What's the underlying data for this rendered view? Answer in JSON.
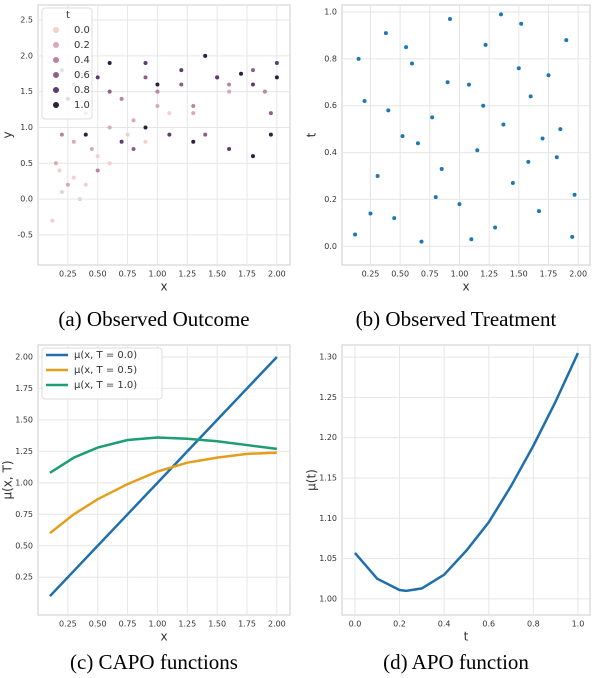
{
  "chart_data": [
    {
      "type": "scatter",
      "caption": "(a) Observed Outcome",
      "xlabel": "x",
      "ylabel": "y",
      "xlim": [
        0.0,
        2.11
      ],
      "ylim": [
        -0.92,
        2.71
      ],
      "xticks": [
        0.25,
        {
          "value": 0.5,
          "label": "0.50"
        },
        0.75,
        {
          "value": 1.0,
          "label": "1.00"
        },
        1.25,
        {
          "value": 1.5,
          "label": "1.50"
        },
        1.75,
        {
          "value": 2.0,
          "label": "2.00"
        }
      ],
      "yticks": [
        -0.5,
        {
          "value": 0,
          "label": "0.0"
        },
        0.5,
        {
          "value": 1,
          "label": "1.0"
        },
        1.5,
        {
          "value": 2,
          "label": "2.0"
        },
        2.5
      ],
      "grid": true,
      "legend_title": "t",
      "legend": "upper left",
      "series": [
        {
          "name": "0.0",
          "color": "#f2d0cc",
          "x": [
            0.12,
            0.2,
            0.3,
            0.4,
            0.5,
            0.6,
            0.75,
            0.9,
            1.1,
            0.18,
            0.35
          ],
          "values": [
            -0.3,
            0.1,
            0.3,
            0.2,
            0.6,
            0.5,
            0.9,
            0.8,
            1.2,
            0.4,
            0.0
          ]
        },
        {
          "name": "0.2",
          "color": "#dba9b3",
          "x": [
            0.15,
            0.3,
            0.45,
            0.6,
            0.8,
            1.0,
            1.3,
            1.6,
            0.25
          ],
          "values": [
            0.5,
            0.8,
            0.7,
            1.0,
            1.1,
            1.3,
            1.2,
            1.5,
            0.2
          ]
        },
        {
          "name": "0.4",
          "color": "#b9849f",
          "x": [
            0.2,
            0.4,
            0.7,
            1.0,
            1.3,
            1.6,
            1.9,
            0.5
          ],
          "values": [
            0.9,
            1.2,
            1.4,
            1.5,
            1.3,
            1.6,
            1.5,
            0.4
          ]
        },
        {
          "name": "0.6",
          "color": "#8f5e8a",
          "x": [
            0.3,
            0.6,
            0.9,
            1.2,
            1.5,
            1.8,
            0.8,
            1.4,
            1.95
          ],
          "values": [
            1.6,
            1.5,
            1.7,
            1.6,
            1.7,
            1.8,
            0.7,
            0.9,
            1.2
          ]
        },
        {
          "name": "0.8",
          "color": "#5e3c6e",
          "x": [
            0.2,
            0.5,
            0.9,
            1.2,
            1.5,
            1.8,
            2.0,
            0.7,
            1.1,
            1.6
          ],
          "values": [
            1.8,
            1.7,
            1.9,
            1.8,
            1.7,
            1.6,
            1.9,
            0.8,
            0.9,
            0.7
          ]
        },
        {
          "name": "1.0",
          "color": "#2d1e3e",
          "x": [
            0.25,
            0.6,
            1.0,
            1.4,
            1.7,
            2.0,
            0.4,
            0.9,
            1.3,
            1.8,
            1.95
          ],
          "values": [
            1.4,
            1.9,
            1.6,
            2.0,
            1.75,
            1.7,
            0.9,
            1.0,
            0.8,
            0.6,
            0.9
          ]
        }
      ]
    },
    {
      "type": "scatter",
      "caption": "(b) Observed Treatment",
      "xlabel": "x",
      "ylabel": "t",
      "xlim": [
        0.01,
        2.1
      ],
      "ylim": [
        -0.08,
        1.03
      ],
      "xticks": [
        0.25,
        {
          "value": 0.5,
          "label": "0.50"
        },
        0.75,
        {
          "value": 1.0,
          "label": "1.00"
        },
        1.25,
        {
          "value": 1.5,
          "label": "1.50"
        },
        1.75,
        {
          "value": 2.0,
          "label": "2.00"
        }
      ],
      "yticks": [
        {
          "value": 0,
          "label": "0.0"
        },
        0.2,
        0.4,
        0.6,
        0.8,
        {
          "value": 1,
          "label": "1.0"
        }
      ],
      "grid": true,
      "series": [
        {
          "color": "#1f77b4",
          "x": [
            0.12,
            0.2,
            0.31,
            0.38,
            0.45,
            0.52,
            0.6,
            0.68,
            0.77,
            0.85,
            0.92,
            1.0,
            1.08,
            1.15,
            1.22,
            1.3,
            1.37,
            1.45,
            1.52,
            1.6,
            1.67,
            1.75,
            1.82,
            1.9,
            1.97,
            0.15,
            0.4,
            0.65,
            0.9,
            1.1,
            1.35,
            1.58,
            1.85,
            0.25,
            0.55,
            0.8,
            1.2,
            1.5,
            1.7,
            1.95
          ],
          "values": [
            0.05,
            0.62,
            0.3,
            0.91,
            0.12,
            0.47,
            0.78,
            0.02,
            0.55,
            0.33,
            0.97,
            0.18,
            0.69,
            0.41,
            0.86,
            0.08,
            0.52,
            0.27,
            0.95,
            0.64,
            0.15,
            0.73,
            0.38,
            0.88,
            0.22,
            0.8,
            0.58,
            0.44,
            0.7,
            0.03,
            0.99,
            0.36,
            0.5,
            0.14,
            0.85,
            0.21,
            0.6,
            0.76,
            0.46,
            0.04
          ]
        }
      ]
    },
    {
      "type": "line",
      "caption": "(c) CAPO functions",
      "xlabel": "x",
      "ylabel": "μ(x, T)",
      "xlim": [
        0.0,
        2.11
      ],
      "ylim": [
        -0.05,
        2.095
      ],
      "xticks": [
        0.25,
        {
          "value": 0.5,
          "label": "0.50"
        },
        0.75,
        {
          "value": 1.0,
          "label": "1.00"
        },
        1.25,
        {
          "value": 1.5,
          "label": "1.50"
        },
        1.75,
        {
          "value": 2.0,
          "label": "2.00"
        }
      ],
      "yticks": [
        0.25,
        {
          "value": 0.5,
          "label": "0.50"
        },
        0.75,
        {
          "value": 1.0,
          "label": "1.00"
        },
        1.25,
        {
          "value": 1.5,
          "label": "1.50"
        },
        1.75,
        {
          "value": 2.0,
          "label": "2.00"
        }
      ],
      "grid": true,
      "legend": "upper left",
      "x": [
        0.1,
        0.3,
        0.5,
        0.75,
        1.0,
        1.25,
        1.5,
        1.75,
        2.0
      ],
      "series": [
        {
          "name": "μ(x, T = 0.0)",
          "color": "#1f6fad",
          "values": [
            0.1,
            0.3,
            0.5,
            0.75,
            1.0,
            1.25,
            1.5,
            1.75,
            2.0
          ]
        },
        {
          "name": "μ(x, T = 0.5)",
          "color": "#e39f1c",
          "values": [
            0.6,
            0.75,
            0.87,
            0.99,
            1.09,
            1.16,
            1.2,
            1.23,
            1.24
          ]
        },
        {
          "name": "μ(x, T = 1.0)",
          "color": "#1a9e74",
          "values": [
            1.08,
            1.2,
            1.28,
            1.34,
            1.36,
            1.35,
            1.33,
            1.3,
            1.27
          ]
        }
      ]
    },
    {
      "type": "line",
      "caption": "(d) APO function",
      "xlabel": "t",
      "ylabel": "μ(t)",
      "xlim": [
        -0.058,
        1.054
      ],
      "ylim": [
        0.98,
        1.315
      ],
      "xticks": [
        {
          "value": 0,
          "label": "0.0"
        },
        0.2,
        0.4,
        0.6,
        0.8,
        {
          "value": 1,
          "label": "1.0"
        }
      ],
      "yticks": [
        {
          "value": 1.0,
          "label": "1.00"
        },
        1.05,
        {
          "value": 1.1,
          "label": "1.10"
        },
        1.15,
        {
          "value": 1.2,
          "label": "1.20"
        },
        1.25,
        {
          "value": 1.3,
          "label": "1.30"
        }
      ],
      "grid": true,
      "x": [
        0,
        0.1,
        0.2,
        0.23,
        0.3,
        0.4,
        0.5,
        0.6,
        0.7,
        0.8,
        0.9,
        1.0
      ],
      "series": [
        {
          "color": "#1f6fad",
          "values": [
            1.057,
            1.025,
            1.011,
            1.01,
            1.013,
            1.03,
            1.06,
            1.095,
            1.14,
            1.19,
            1.245,
            1.305
          ]
        }
      ]
    }
  ]
}
